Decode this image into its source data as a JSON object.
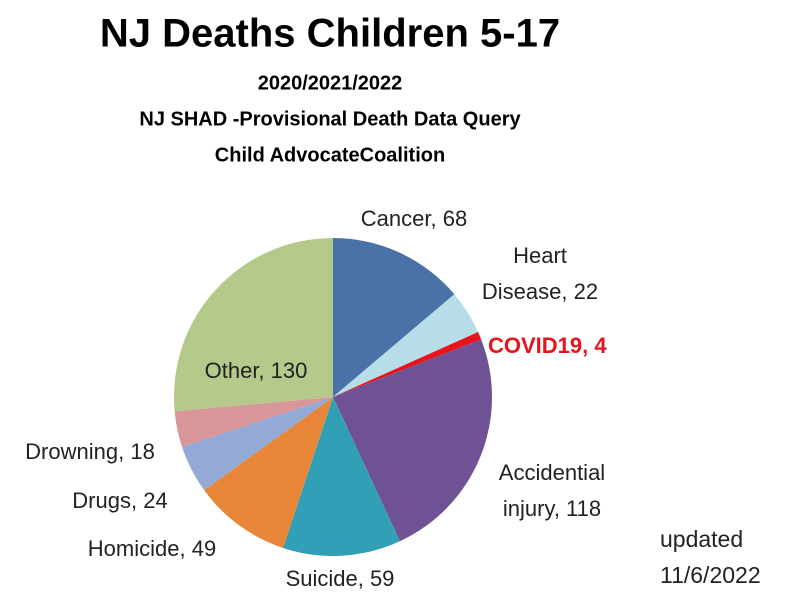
{
  "chart_data": {
    "type": "pie",
    "title": "NJ Deaths Children 5-17",
    "subtitle": [
      "2020/2021/2022",
      "NJ SHAD -Provisional Death Data Query",
      "Child AdvocateCoalition"
    ],
    "annotation": [
      "updated",
      "11/6/2022"
    ],
    "values": [
      68,
      22,
      4,
      118,
      59,
      49,
      24,
      18,
      130
    ],
    "value_labels": [
      "Cancer, 68",
      "Heart Disease, 22",
      "COVID19, 4",
      "Accidential injury, 118",
      "Suicide, 59",
      "Homicide, 49",
      "Drugs, 24",
      "Drowning, 18",
      "Other, 130"
    ],
    "colors": [
      "#4a72a8",
      "#b7dde8",
      "#e8141c",
      "#6f5294",
      "#31a0b6",
      "#e8873a",
      "#93a9d6",
      "#d9969a",
      "#b4c98a"
    ]
  }
}
